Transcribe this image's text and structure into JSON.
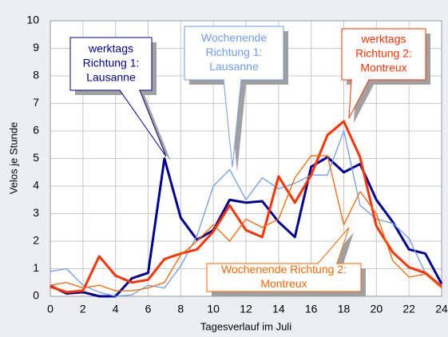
{
  "chart_data": {
    "type": "line",
    "x_label": "Tagesverlauf im Juli",
    "y_label": "Velos je Stunde",
    "x": [
      0,
      1,
      2,
      3,
      4,
      5,
      6,
      7,
      8,
      9,
      10,
      11,
      12,
      13,
      14,
      15,
      16,
      17,
      18,
      19,
      20,
      21,
      22,
      23,
      24
    ],
    "xlim": [
      0,
      24
    ],
    "xticks": [
      0,
      2,
      4,
      6,
      8,
      10,
      12,
      14,
      16,
      18,
      20,
      22,
      24
    ],
    "ylim": [
      0,
      10
    ],
    "yticks": [
      0,
      1,
      2,
      3,
      4,
      5,
      6,
      7,
      8,
      9,
      10
    ],
    "grid": true,
    "series": [
      {
        "color": "#000099",
        "width": 3,
        "values": [
          0.38,
          0.1,
          0.15,
          0.0,
          0.0,
          0.65,
          0.85,
          5.0,
          2.85,
          2.05,
          2.4,
          3.5,
          3.4,
          3.45,
          2.7,
          2.15,
          4.7,
          5.05,
          4.5,
          4.8,
          3.5,
          2.7,
          1.7,
          1.55,
          0.45
        ]
      },
      {
        "color": "#6f9cf0",
        "width": 1.3,
        "values": [
          0.9,
          1.0,
          0.4,
          0.15,
          0.0,
          0.05,
          0.4,
          0.3,
          1.1,
          2.2,
          4.0,
          4.6,
          3.5,
          4.3,
          3.9,
          4.1,
          4.4,
          4.4,
          6.0,
          3.3,
          2.8,
          2.65,
          2.1,
          0.85,
          0.4
        ]
      },
      {
        "color": "#ff3300",
        "width": 3,
        "values": [
          0.35,
          0.15,
          0.2,
          1.45,
          0.75,
          0.5,
          0.6,
          1.35,
          1.55,
          1.7,
          2.35,
          3.3,
          2.4,
          2.15,
          4.35,
          3.4,
          4.4,
          5.85,
          6.35,
          5.05,
          2.55,
          1.6,
          1.05,
          0.85,
          0.35
        ]
      },
      {
        "color": "#ff6600",
        "width": 1.3,
        "values": [
          0.4,
          0.5,
          0.3,
          0.4,
          0.2,
          0.2,
          0.3,
          0.5,
          1.5,
          2.0,
          2.6,
          2.0,
          2.8,
          2.5,
          2.8,
          4.3,
          5.1,
          5.1,
          2.6,
          3.8,
          3.0,
          1.3,
          0.7,
          0.8,
          0.3
        ]
      }
    ],
    "annotations": [
      {
        "lines": [
          "werktags",
          "Richtung 1:",
          "Lausanne"
        ],
        "color": "#000099"
      },
      {
        "lines": [
          "Wochenende",
          "Richtung 1:",
          "Lausanne"
        ],
        "color": "#6f9cf0"
      },
      {
        "lines": [
          "werktags",
          "Richtung 2:",
          "Montreux"
        ],
        "color": "#ff3300"
      },
      {
        "lines": [
          "Wochenende Richtung 2:",
          "Montreux"
        ],
        "color": "#ff6600"
      }
    ]
  }
}
